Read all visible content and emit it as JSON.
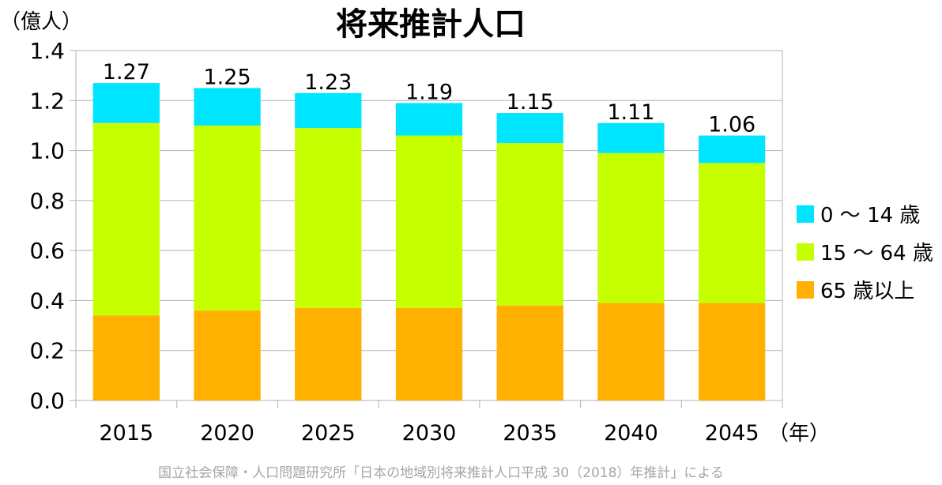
{
  "chart_data": {
    "type": "bar",
    "stacked": true,
    "title": "将来推計人口",
    "y_unit_label": "（億人）",
    "x_unit_label": "（年）",
    "categories": [
      "2015",
      "2020",
      "2025",
      "2030",
      "2035",
      "2040",
      "2045"
    ],
    "totals": [
      "1.27",
      "1.25",
      "1.23",
      "1.19",
      "1.15",
      "1.11",
      "1.06"
    ],
    "series": [
      {
        "name": "65 歳以上",
        "color": "#ffb000",
        "values": [
          0.34,
          0.36,
          0.37,
          0.37,
          0.38,
          0.39,
          0.39
        ]
      },
      {
        "name": "15 〜 64 歳",
        "color": "#c6ff00",
        "values": [
          0.77,
          0.74,
          0.72,
          0.69,
          0.65,
          0.6,
          0.56
        ]
      },
      {
        "name": "0 〜 14 歳",
        "color": "#00e5ff",
        "values": [
          0.16,
          0.15,
          0.14,
          0.13,
          0.12,
          0.12,
          0.11
        ]
      }
    ],
    "legend_order": [
      "0 〜 14 歳",
      "15 〜 64 歳",
      "65 歳以上"
    ],
    "legend_position": "right",
    "ylim": [
      0,
      1.4
    ],
    "yticks": [
      "0.0",
      "0.2",
      "0.4",
      "0.6",
      "0.8",
      "1.0",
      "1.2",
      "1.4"
    ],
    "grid": true
  },
  "source_note": "国立社会保障・人口問題研究所「日本の地域別将来推計人口平成 30（2018）年推計」による"
}
